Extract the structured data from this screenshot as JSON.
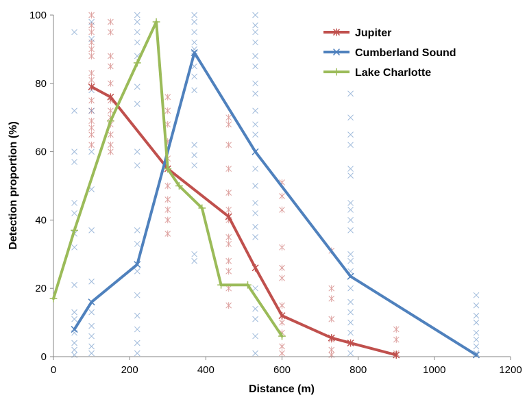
{
  "chart_data": {
    "type": "line",
    "xlabel": "Distance (m)",
    "ylabel": "Detection proportion (%)",
    "xlim": [
      0,
      1200
    ],
    "ylim": [
      0,
      100
    ],
    "x_ticks": [
      "0",
      "200",
      "400",
      "600",
      "800",
      "1000",
      "1200"
    ],
    "y_ticks": [
      "0",
      "20",
      "40",
      "60",
      "80",
      "100"
    ],
    "grid": false,
    "legend": "top-right",
    "series": [
      {
        "name": "Jupiter",
        "color": "#c0504d",
        "marker": "asterisk",
        "x": [
          100,
          150,
          300,
          460,
          530,
          600,
          730,
          780,
          900
        ],
        "y": [
          79,
          76,
          55,
          41,
          26,
          12,
          5.5,
          4,
          0.5
        ]
      },
      {
        "name": "Cumberland Sound",
        "color": "#4f81bd",
        "marker": "x",
        "x": [
          55,
          100,
          220,
          370,
          530,
          780,
          1110
        ],
        "y": [
          8,
          16,
          27,
          89,
          60,
          23.5,
          0.5
        ]
      },
      {
        "name": "Lake Charlotte",
        "color": "#9bbb59",
        "marker": "plus",
        "x": [
          0,
          55,
          150,
          220,
          270,
          300,
          330,
          390,
          440,
          510,
          600
        ],
        "y": [
          17,
          37,
          69,
          86,
          98,
          55,
          50,
          43.5,
          21,
          21,
          6
        ]
      }
    ],
    "raw_points": [
      {
        "series": "Jupiter",
        "points": [
          [
            100,
            100
          ],
          [
            100,
            97
          ],
          [
            100,
            95
          ],
          [
            100,
            92
          ],
          [
            100,
            90
          ],
          [
            100,
            88
          ],
          [
            100,
            83
          ],
          [
            100,
            81
          ],
          [
            100,
            75
          ],
          [
            100,
            72
          ],
          [
            100,
            69
          ],
          [
            100,
            67
          ],
          [
            100,
            65
          ],
          [
            100,
            62
          ],
          [
            150,
            98
          ],
          [
            150,
            95
          ],
          [
            150,
            88
          ],
          [
            150,
            85
          ],
          [
            150,
            80
          ],
          [
            150,
            75
          ],
          [
            150,
            72
          ],
          [
            150,
            70
          ],
          [
            150,
            68
          ],
          [
            150,
            65
          ],
          [
            150,
            62
          ],
          [
            150,
            60
          ],
          [
            300,
            76
          ],
          [
            300,
            72
          ],
          [
            300,
            68
          ],
          [
            300,
            63
          ],
          [
            300,
            58
          ],
          [
            300,
            55
          ],
          [
            300,
            50
          ],
          [
            300,
            46
          ],
          [
            300,
            43
          ],
          [
            300,
            40
          ],
          [
            300,
            36
          ],
          [
            460,
            70
          ],
          [
            460,
            68
          ],
          [
            460,
            62
          ],
          [
            460,
            55
          ],
          [
            460,
            48
          ],
          [
            460,
            43
          ],
          [
            460,
            40
          ],
          [
            460,
            35
          ],
          [
            460,
            33
          ],
          [
            460,
            28
          ],
          [
            460,
            25
          ],
          [
            460,
            20
          ],
          [
            460,
            15
          ],
          [
            600,
            51
          ],
          [
            600,
            47
          ],
          [
            600,
            43
          ],
          [
            600,
            32
          ],
          [
            600,
            26
          ],
          [
            600,
            23
          ],
          [
            600,
            15
          ],
          [
            600,
            10
          ],
          [
            600,
            7
          ],
          [
            600,
            3
          ],
          [
            600,
            1
          ],
          [
            730,
            31
          ],
          [
            730,
            20
          ],
          [
            730,
            17
          ],
          [
            730,
            11
          ],
          [
            730,
            5
          ],
          [
            730,
            2
          ],
          [
            730,
            0.5
          ],
          [
            900,
            8
          ],
          [
            900,
            5
          ],
          [
            900,
            1
          ]
        ]
      },
      {
        "series": "Cumberland Sound",
        "points": [
          [
            55,
            95
          ],
          [
            55,
            72
          ],
          [
            55,
            60
          ],
          [
            55,
            57
          ],
          [
            55,
            45
          ],
          [
            55,
            42
          ],
          [
            55,
            36
          ],
          [
            55,
            32
          ],
          [
            55,
            21
          ],
          [
            55,
            13
          ],
          [
            55,
            11
          ],
          [
            55,
            7
          ],
          [
            55,
            4
          ],
          [
            55,
            2
          ],
          [
            55,
            0.5
          ],
          [
            100,
            98
          ],
          [
            100,
            93
          ],
          [
            100,
            78
          ],
          [
            100,
            72
          ],
          [
            100,
            60
          ],
          [
            100,
            49
          ],
          [
            100,
            37
          ],
          [
            100,
            22
          ],
          [
            100,
            13
          ],
          [
            100,
            9
          ],
          [
            100,
            6
          ],
          [
            100,
            3
          ],
          [
            100,
            1
          ],
          [
            220,
            100
          ],
          [
            220,
            98
          ],
          [
            220,
            95
          ],
          [
            220,
            92
          ],
          [
            220,
            88
          ],
          [
            220,
            79
          ],
          [
            220,
            74
          ],
          [
            220,
            60
          ],
          [
            220,
            56
          ],
          [
            220,
            37
          ],
          [
            220,
            33
          ],
          [
            220,
            25
          ],
          [
            220,
            18
          ],
          [
            220,
            12
          ],
          [
            220,
            8
          ],
          [
            220,
            4
          ],
          [
            220,
            1
          ],
          [
            370,
            100
          ],
          [
            370,
            98
          ],
          [
            370,
            95
          ],
          [
            370,
            92
          ],
          [
            370,
            90
          ],
          [
            370,
            88
          ],
          [
            370,
            85
          ],
          [
            370,
            82
          ],
          [
            370,
            78
          ],
          [
            370,
            62
          ],
          [
            370,
            59
          ],
          [
            370,
            56
          ],
          [
            370,
            30
          ],
          [
            370,
            28
          ],
          [
            530,
            100
          ],
          [
            530,
            97
          ],
          [
            530,
            95
          ],
          [
            530,
            92
          ],
          [
            530,
            88
          ],
          [
            530,
            85
          ],
          [
            530,
            80
          ],
          [
            530,
            77
          ],
          [
            530,
            72
          ],
          [
            530,
            68
          ],
          [
            530,
            65
          ],
          [
            530,
            60
          ],
          [
            530,
            55
          ],
          [
            530,
            50
          ],
          [
            530,
            45
          ],
          [
            530,
            42
          ],
          [
            530,
            38
          ],
          [
            530,
            35
          ],
          [
            530,
            26
          ],
          [
            530,
            20
          ],
          [
            530,
            14
          ],
          [
            530,
            11
          ],
          [
            530,
            6
          ],
          [
            530,
            1
          ],
          [
            780,
            77
          ],
          [
            780,
            70
          ],
          [
            780,
            65
          ],
          [
            780,
            62
          ],
          [
            780,
            55
          ],
          [
            780,
            53
          ],
          [
            780,
            45
          ],
          [
            780,
            43
          ],
          [
            780,
            40
          ],
          [
            780,
            37
          ],
          [
            780,
            30
          ],
          [
            780,
            28
          ],
          [
            780,
            25
          ],
          [
            780,
            20
          ],
          [
            780,
            16
          ],
          [
            780,
            13
          ],
          [
            780,
            10
          ],
          [
            780,
            7
          ],
          [
            780,
            4
          ],
          [
            780,
            1
          ],
          [
            1110,
            18
          ],
          [
            1110,
            15
          ],
          [
            1110,
            12
          ],
          [
            1110,
            10
          ],
          [
            1110,
            7
          ],
          [
            1110,
            5
          ],
          [
            1110,
            3
          ],
          [
            1110,
            1
          ]
        ]
      }
    ]
  }
}
